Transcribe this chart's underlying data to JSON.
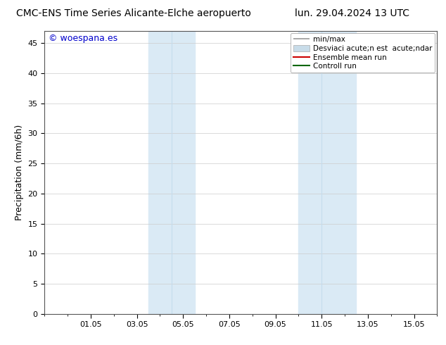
{
  "title_left": "CMC-ENS Time Series Alicante-Elche aeropuerto",
  "title_right": "lun. 29.04.2024 13 UTC",
  "ylabel": "Precipitation (mm/6h)",
  "watermark": "© woespana.es",
  "watermark_color": "#0000cc",
  "ylim": [
    0,
    47
  ],
  "yticks": [
    0,
    5,
    10,
    15,
    20,
    25,
    30,
    35,
    40,
    45
  ],
  "xtick_labels": [
    "01.05",
    "03.05",
    "05.05",
    "07.05",
    "09.05",
    "11.05",
    "13.05",
    "15.05"
  ],
  "xtick_positions": [
    2,
    4,
    6,
    8,
    10,
    12,
    14,
    16
  ],
  "xlim": [
    0,
    17
  ],
  "background_color": "#ffffff",
  "shaded_regions": [
    [
      4.5,
      5.5
    ],
    [
      5.5,
      6.5
    ],
    [
      11.0,
      12.0
    ],
    [
      12.0,
      13.5
    ]
  ],
  "shaded_color": "#daeaf5",
  "shaded_divider_color": "#c5dced",
  "shaded_dividers": [
    5.5,
    12.0
  ],
  "grid_color": "#cccccc",
  "spine_color": "#555555",
  "title_fontsize": 10,
  "axis_fontsize": 9,
  "tick_fontsize": 8,
  "legend_fontsize": 7.5,
  "legend_label_minmax": "min/max",
  "legend_label_std": "Desviaci acute;n est  acute;ndar",
  "legend_label_ensemble": "Ensemble mean run",
  "legend_label_control": "Controll run",
  "legend_color_minmax": "#999999",
  "legend_color_std": "#c8dce9",
  "legend_color_ensemble": "#cc0000",
  "legend_color_control": "#006600"
}
